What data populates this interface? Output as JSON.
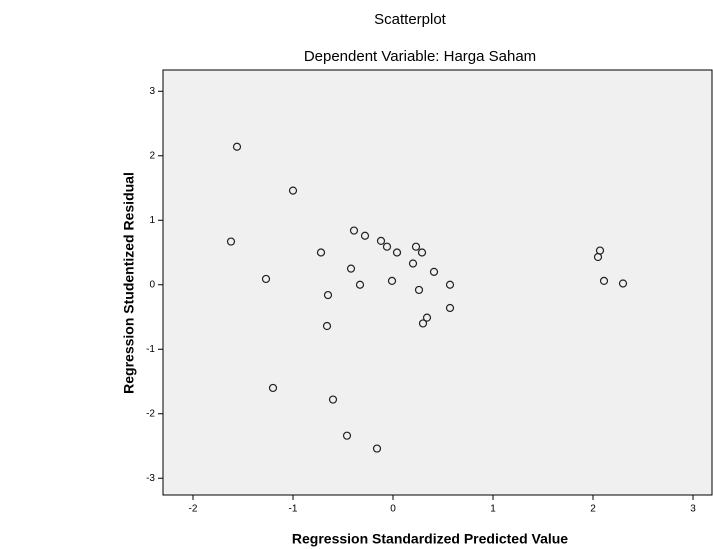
{
  "chart_data": {
    "type": "scatter",
    "title": "Scatterplot",
    "subtitle": "Dependent Variable: Harga Saham",
    "x_label": "Regression Standardized Predicted Value",
    "y_label": "Regression Studentized Residual",
    "x": [
      -1.56,
      -1.0,
      -1.62,
      -1.27,
      -0.72,
      -0.39,
      -0.28,
      -0.12,
      -0.06,
      0.04,
      0.23,
      0.29,
      0.2,
      -0.42,
      0.41,
      -0.33,
      -0.01,
      -0.65,
      0.26,
      0.57,
      0.57,
      0.34,
      0.3,
      -0.66,
      -1.2,
      -0.6,
      -0.46,
      -0.16,
      2.07,
      2.05,
      2.11,
      2.3
    ],
    "y": [
      2.14,
      1.46,
      0.67,
      0.09,
      0.5,
      0.84,
      0.76,
      0.68,
      0.59,
      0.5,
      0.59,
      0.5,
      0.33,
      0.25,
      0.2,
      0.0,
      0.06,
      -0.16,
      -0.08,
      0.0,
      -0.36,
      -0.51,
      -0.6,
      -0.64,
      -1.6,
      -1.78,
      -2.34,
      -2.54,
      0.53,
      0.43,
      0.06,
      0.02
    ],
    "color": "#222222",
    "xlim": [
      -2.3,
      3.19
    ],
    "ylim": [
      -3.26,
      3.33
    ],
    "xticks": [
      -2,
      -1,
      0,
      1,
      2,
      3
    ],
    "yticks": [
      -3,
      -2,
      -1,
      0,
      1,
      2,
      3
    ]
  }
}
